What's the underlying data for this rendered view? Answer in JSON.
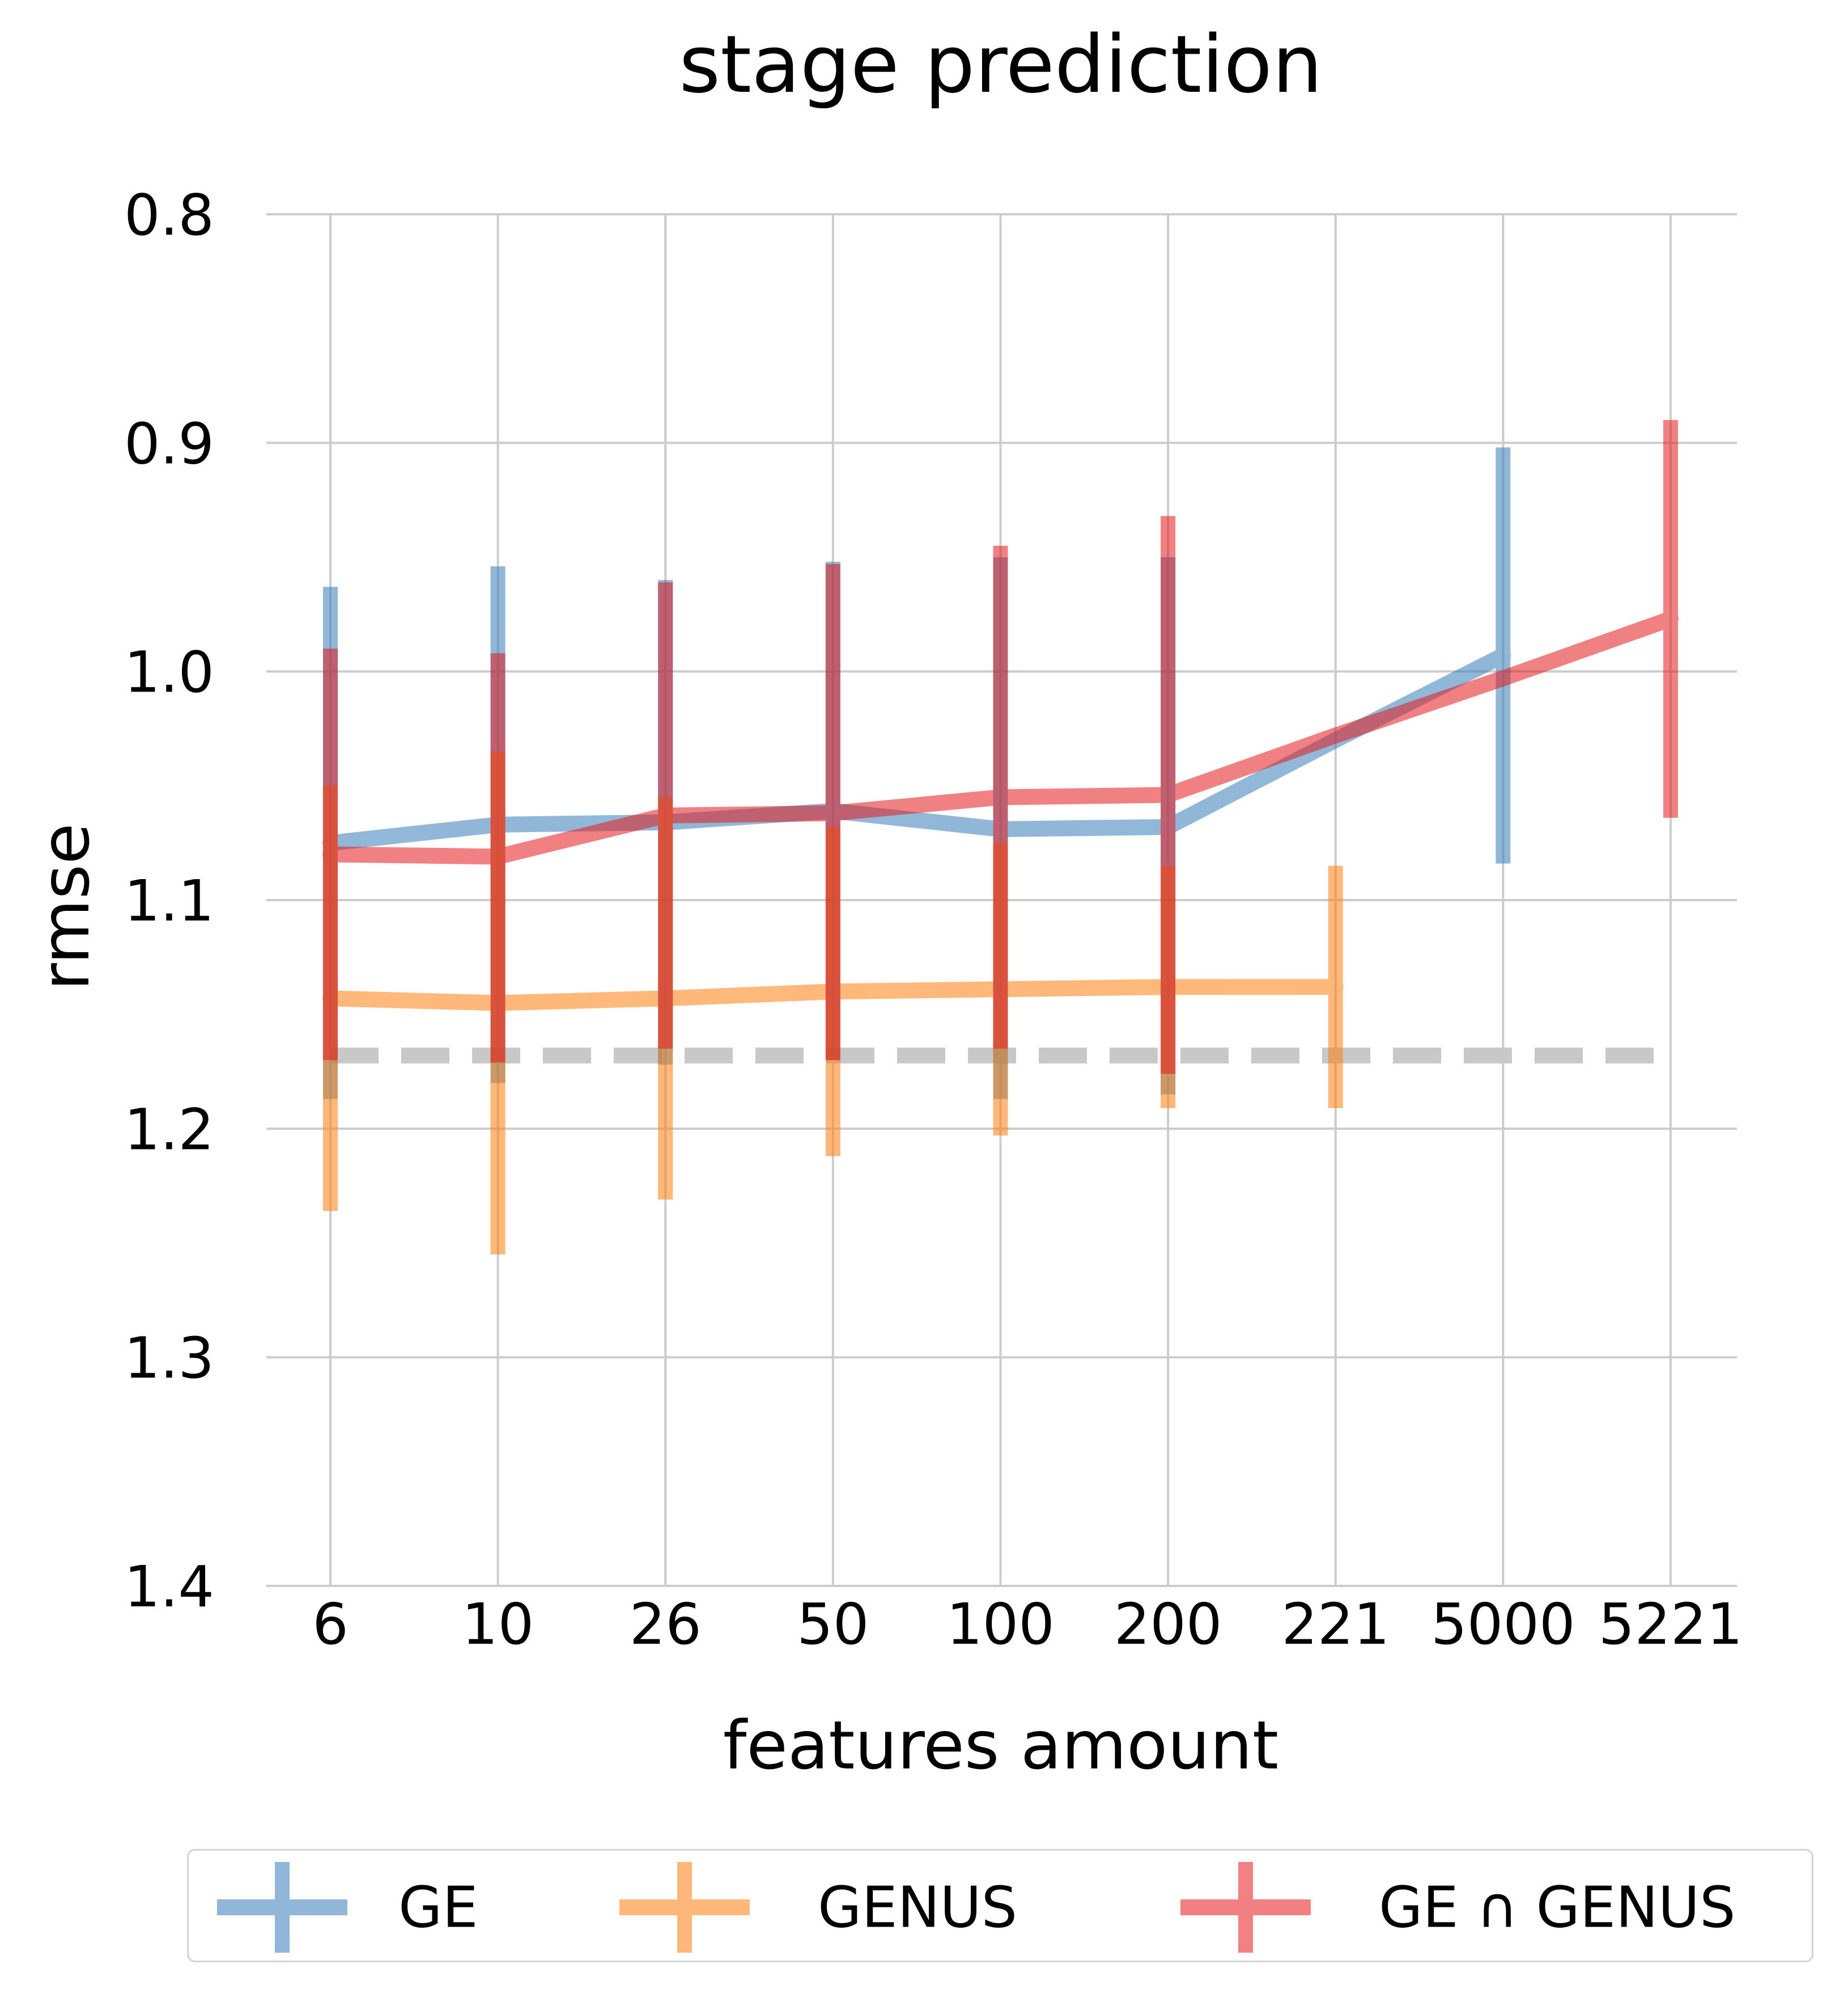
{
  "chart_data": {
    "type": "line",
    "title": "stage prediction",
    "xlabel": "features amount",
    "ylabel": "rmse",
    "categories": [
      "6",
      "10",
      "26",
      "50",
      "100",
      "200",
      "221",
      "5000",
      "5221"
    ],
    "y_ticks": [
      "0.8",
      "0.9",
      "1.0",
      "1.1",
      "1.2",
      "1.3",
      "1.4"
    ],
    "ylim": [
      1.4,
      0.8
    ],
    "y_inverted": true,
    "grid": true,
    "legend_position": "bottom",
    "baseline": {
      "value": 1.168,
      "style": "dashed",
      "color": "#c8c8c8"
    },
    "series": [
      {
        "name": "GE",
        "color": "#377eb8",
        "points": [
          {
            "x": "6",
            "y": 1.075,
            "lo": 0.963,
            "hi": 1.187
          },
          {
            "x": "10",
            "y": 1.067,
            "lo": 0.954,
            "hi": 1.18
          },
          {
            "x": "26",
            "y": 1.066,
            "lo": 0.96,
            "hi": 1.172
          },
          {
            "x": "50",
            "y": 1.061,
            "lo": 0.952,
            "hi": 1.17
          },
          {
            "x": "100",
            "y": 1.069,
            "lo": 0.95,
            "hi": 1.187
          },
          {
            "x": "200",
            "y": 1.068,
            "lo": 0.95,
            "hi": 1.185
          },
          {
            "x": "221",
            "y": 1.03,
            "lo": null,
            "hi": null
          },
          {
            "x": "5000",
            "y": 0.993,
            "lo": 0.902,
            "hi": 1.084
          }
        ]
      },
      {
        "name": "GENUS",
        "color": "#ff7f0e",
        "points": [
          {
            "x": "6",
            "y": 1.143,
            "lo": 1.05,
            "hi": 1.236
          },
          {
            "x": "10",
            "y": 1.145,
            "lo": 1.035,
            "hi": 1.255
          },
          {
            "x": "26",
            "y": 1.143,
            "lo": 1.055,
            "hi": 1.231
          },
          {
            "x": "50",
            "y": 1.14,
            "lo": 1.068,
            "hi": 1.212
          },
          {
            "x": "100",
            "y": 1.139,
            "lo": 1.075,
            "hi": 1.203
          },
          {
            "x": "200",
            "y": 1.138,
            "lo": 1.085,
            "hi": 1.191
          },
          {
            "x": "221",
            "y": 1.138,
            "lo": 1.085,
            "hi": 1.191
          }
        ]
      },
      {
        "name": "GE ∩ GENUS",
        "color": "#e41a1c",
        "points": [
          {
            "x": "6",
            "y": 1.08,
            "lo": 0.99,
            "hi": 1.17
          },
          {
            "x": "10",
            "y": 1.081,
            "lo": 0.992,
            "hi": 1.171
          },
          {
            "x": "26",
            "y": 1.063,
            "lo": 0.961,
            "hi": 1.165
          },
          {
            "x": "50",
            "y": 1.062,
            "lo": 0.953,
            "hi": 1.17
          },
          {
            "x": "100",
            "y": 1.055,
            "lo": 0.945,
            "hi": 1.165
          },
          {
            "x": "200",
            "y": 1.054,
            "lo": 0.932,
            "hi": 1.176
          },
          {
            "x": "221",
            "y": 1.028,
            "lo": null,
            "hi": null
          },
          {
            "x": "5000",
            "y": 1.003,
            "lo": null,
            "hi": null
          },
          {
            "x": "5221",
            "y": 0.977,
            "lo": 0.89,
            "hi": 1.064
          }
        ]
      }
    ]
  }
}
